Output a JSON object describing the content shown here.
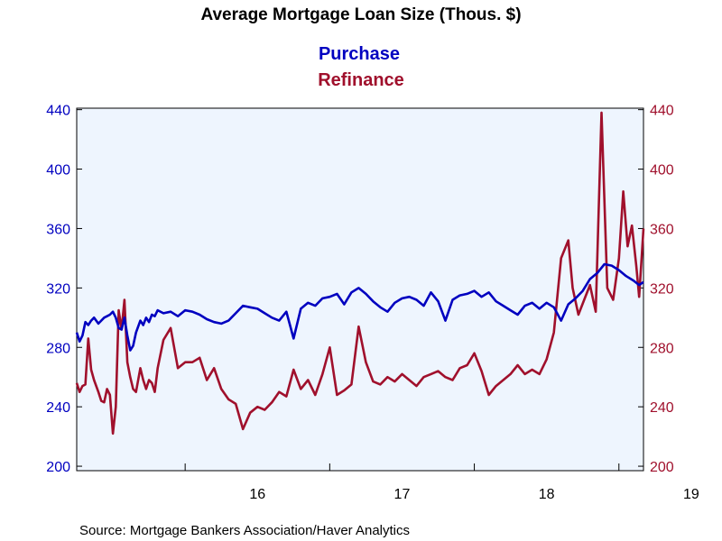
{
  "chart_data": {
    "type": "line",
    "title": "Average Mortgage Loan Size (Thous. $)",
    "source": "Source:  Mortgage Bankers Association/Haver Analytics",
    "x_tick_labels": [
      "16",
      "17",
      "18",
      "19"
    ],
    "y_ticks": [
      "200",
      "240",
      "280",
      "320",
      "360",
      "400",
      "440"
    ],
    "ylim": [
      197,
      441
    ],
    "xlim": [
      2015.25,
      2019.17
    ],
    "grid": false,
    "legend": "top-center",
    "colors": {
      "purchase": "#0000c0",
      "refinance": "#a0102c",
      "plot_bg": "#eef5fe"
    },
    "series": [
      {
        "name": "Purchase",
        "axis": "left",
        "x": [
          2015.25,
          2015.27,
          2015.29,
          2015.31,
          2015.33,
          2015.35,
          2015.37,
          2015.4,
          2015.42,
          2015.44,
          2015.46,
          2015.48,
          2015.5,
          2015.52,
          2015.54,
          2015.56,
          2015.58,
          2015.6,
          2015.62,
          2015.64,
          2015.66,
          2015.69,
          2015.71,
          2015.73,
          2015.75,
          2015.77,
          2015.79,
          2015.81,
          2015.85,
          2015.9,
          2015.95,
          2016.0,
          2016.05,
          2016.1,
          2016.15,
          2016.2,
          2016.25,
          2016.3,
          2016.35,
          2016.4,
          2016.45,
          2016.5,
          2016.55,
          2016.6,
          2016.65,
          2016.7,
          2016.75,
          2016.8,
          2016.85,
          2016.9,
          2016.95,
          2017.0,
          2017.05,
          2017.1,
          2017.15,
          2017.2,
          2017.25,
          2017.3,
          2017.35,
          2017.4,
          2017.45,
          2017.5,
          2017.55,
          2017.6,
          2017.65,
          2017.7,
          2017.75,
          2017.8,
          2017.85,
          2017.9,
          2017.95,
          2018.0,
          2018.05,
          2018.1,
          2018.15,
          2018.2,
          2018.25,
          2018.3,
          2018.35,
          2018.4,
          2018.45,
          2018.5,
          2018.55,
          2018.6,
          2018.65,
          2018.7,
          2018.75,
          2018.8,
          2018.85,
          2018.9,
          2018.95,
          2019.0,
          2019.05,
          2019.1,
          2019.14,
          2019.17
        ],
        "values": [
          290,
          284,
          288,
          297,
          295,
          298,
          300,
          296,
          298,
          300,
          301,
          302,
          304,
          300,
          293,
          292,
          300,
          288,
          278,
          281,
          290,
          298,
          295,
          300,
          297,
          302,
          301,
          305,
          303,
          304,
          301,
          305,
          304,
          302,
          299,
          297,
          296,
          298,
          303,
          308,
          307,
          306,
          303,
          300,
          298,
          304,
          286,
          306,
          310,
          308,
          313,
          314,
          316,
          309,
          317,
          320,
          316,
          311,
          307,
          304,
          310,
          313,
          314,
          312,
          308,
          317,
          311,
          298,
          312,
          315,
          316,
          318,
          314,
          317,
          311,
          308,
          305,
          302,
          308,
          310,
          306,
          310,
          307,
          298,
          309,
          313,
          318,
          326,
          330,
          336,
          335,
          332,
          328,
          325,
          322,
          324
        ]
      },
      {
        "name": "Refinance",
        "axis": "right",
        "x": [
          2015.25,
          2015.27,
          2015.29,
          2015.31,
          2015.33,
          2015.35,
          2015.37,
          2015.4,
          2015.42,
          2015.44,
          2015.46,
          2015.48,
          2015.5,
          2015.52,
          2015.54,
          2015.56,
          2015.58,
          2015.6,
          2015.62,
          2015.64,
          2015.66,
          2015.69,
          2015.71,
          2015.73,
          2015.75,
          2015.77,
          2015.79,
          2015.81,
          2015.85,
          2015.9,
          2015.95,
          2016.0,
          2016.05,
          2016.1,
          2016.15,
          2016.2,
          2016.25,
          2016.3,
          2016.35,
          2016.4,
          2016.45,
          2016.5,
          2016.55,
          2016.6,
          2016.65,
          2016.7,
          2016.75,
          2016.8,
          2016.85,
          2016.9,
          2016.95,
          2017.0,
          2017.05,
          2017.1,
          2017.15,
          2017.2,
          2017.25,
          2017.3,
          2017.35,
          2017.4,
          2017.45,
          2017.5,
          2017.55,
          2017.6,
          2017.65,
          2017.7,
          2017.75,
          2017.8,
          2017.85,
          2017.9,
          2017.95,
          2018.0,
          2018.05,
          2018.1,
          2018.15,
          2018.2,
          2018.25,
          2018.3,
          2018.35,
          2018.4,
          2018.45,
          2018.5,
          2018.55,
          2018.6,
          2018.65,
          2018.68,
          2018.72,
          2018.76,
          2018.8,
          2018.84,
          2018.88,
          2018.92,
          2018.96,
          2019.0,
          2019.03,
          2019.06,
          2019.09,
          2019.12,
          2019.14,
          2019.17
        ],
        "values": [
          256,
          250,
          254,
          255,
          286,
          265,
          258,
          250,
          244,
          243,
          252,
          248,
          222,
          240,
          305,
          292,
          312,
          270,
          260,
          252,
          250,
          266,
          258,
          252,
          258,
          256,
          250,
          266,
          285,
          293,
          266,
          270,
          270,
          273,
          258,
          266,
          252,
          245,
          242,
          225,
          236,
          240,
          238,
          243,
          250,
          247,
          265,
          252,
          258,
          248,
          262,
          280,
          248,
          251,
          255,
          294,
          270,
          257,
          255,
          260,
          257,
          262,
          258,
          254,
          260,
          262,
          264,
          260,
          258,
          266,
          268,
          276,
          264,
          248,
          254,
          258,
          262,
          268,
          262,
          265,
          262,
          272,
          290,
          340,
          352,
          320,
          302,
          312,
          322,
          304,
          438,
          320,
          312,
          340,
          385,
          348,
          362,
          335,
          314,
          360
        ]
      }
    ]
  }
}
